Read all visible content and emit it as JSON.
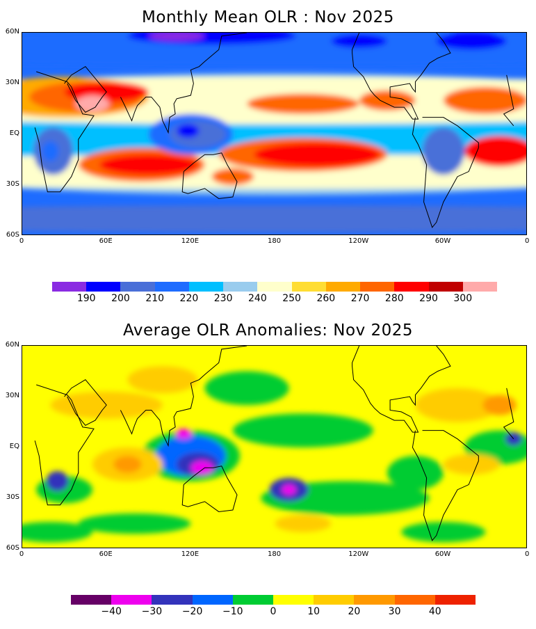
{
  "chart_data": [
    {
      "type": "heatmap",
      "title": "Monthly Mean OLR : Nov 2025",
      "y_ticks": [
        "60N",
        "30N",
        "EQ",
        "30S",
        "60S"
      ],
      "x_ticks": [
        "0",
        "60E",
        "120E",
        "180",
        "120W",
        "60W",
        "0"
      ],
      "xlim": [
        0,
        360
      ],
      "ylim": [
        -60,
        60
      ],
      "colorbar": {
        "labels": [
          "190",
          "200",
          "210",
          "220",
          "230",
          "240",
          "250",
          "260",
          "270",
          "280",
          "290",
          "300"
        ],
        "colors": [
          "#8a2be2",
          "#0000ff",
          "#4a6fd8",
          "#1e6cff",
          "#00bfff",
          "#99ccee",
          "#ffffcc",
          "#ffdd33",
          "#ffaa00",
          "#ff6600",
          "#ff0000",
          "#c00000",
          "#ffaaaa"
        ]
      }
    },
    {
      "type": "heatmap",
      "title": "Average OLR Anomalies: Nov 2025",
      "y_ticks": [
        "60N",
        "30N",
        "EQ",
        "30S",
        "60S"
      ],
      "x_ticks": [
        "0",
        "60E",
        "120E",
        "180",
        "120W",
        "60W",
        "0"
      ],
      "xlim": [
        0,
        360
      ],
      "ylim": [
        -60,
        60
      ],
      "colorbar": {
        "labels": [
          "−40",
          "−30",
          "−20",
          "−10",
          "0",
          "10",
          "20",
          "30",
          "40"
        ],
        "colors": [
          "#660066",
          "#ee00ee",
          "#3333bb",
          "#0066ff",
          "#00cc33",
          "#ffff00",
          "#ffcc00",
          "#ff9900",
          "#ff6600",
          "#ee2200"
        ]
      }
    }
  ]
}
